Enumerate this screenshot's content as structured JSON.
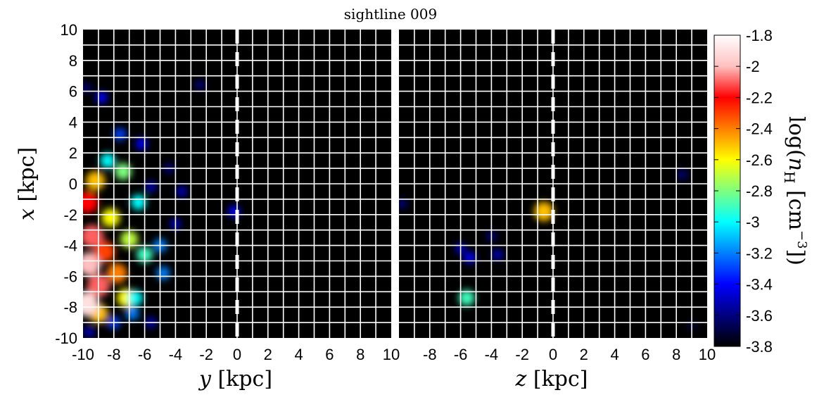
{
  "chart_data": {
    "type": "heatmap",
    "title": "sightline 009",
    "colorbar": {
      "label_prefix": "log(",
      "label_var": "n",
      "label_sub": "H",
      "label_unit": " [cm",
      "label_exp": "−3",
      "label_close": "])",
      "range": [
        -3.8,
        -1.8
      ],
      "ticks": [
        "-1.8",
        "-2",
        "-2.2",
        "-2.4",
        "-2.6",
        "-2.8",
        "-3",
        "-3.2",
        "-3.4",
        "-3.6",
        "-3.8"
      ],
      "colormap": [
        "#000000",
        "#00007f",
        "#0000ff",
        "#007fff",
        "#00ffff",
        "#7fff7f",
        "#ffff00",
        "#ff7f00",
        "#ff0000",
        "#ffc0c0",
        "#ffffff"
      ]
    },
    "panels": [
      {
        "xlabel_var": "y",
        "xlabel_unit": " [kpc]",
        "ylabel_var": "x",
        "ylabel_unit": " [kpc]",
        "xlim": [
          -10,
          10
        ],
        "ylim": [
          -10,
          10
        ],
        "xticks": [
          "-10",
          "-8",
          "-6",
          "-4",
          "-2",
          "0",
          "2",
          "4",
          "6",
          "8",
          "10"
        ],
        "yticks": [
          "10",
          "8",
          "6",
          "4",
          "2",
          "0",
          "-2",
          "-4",
          "-6",
          "-8",
          "-10"
        ],
        "sightline_at": 0,
        "grid": true,
        "clouds": [
          {
            "x": -9.6,
            "y": -5.2,
            "value": -2.0
          },
          {
            "x": -9.4,
            "y": -3.4,
            "value": -2.1
          },
          {
            "x": -9.0,
            "y": -6.6,
            "value": -2.1
          },
          {
            "x": -9.7,
            "y": -1.2,
            "value": -2.2
          },
          {
            "x": -8.6,
            "y": -4.4,
            "value": -2.3
          },
          {
            "x": -9.2,
            "y": 0.2,
            "value": -2.5
          },
          {
            "x": -8.2,
            "y": -2.2,
            "value": -2.6
          },
          {
            "x": -7.8,
            "y": -5.8,
            "value": -2.4
          },
          {
            "x": -7.2,
            "y": -7.4,
            "value": -2.6
          },
          {
            "x": -9.0,
            "y": -8.4,
            "value": -2.5
          },
          {
            "x": -8.4,
            "y": 1.5,
            "value": -3.0
          },
          {
            "x": -7.0,
            "y": -3.6,
            "value": -2.7
          },
          {
            "x": -6.4,
            "y": -1.2,
            "value": -3.0
          },
          {
            "x": -6.0,
            "y": -4.6,
            "value": -2.9
          },
          {
            "x": -5.0,
            "y": -4.0,
            "value": -3.2
          },
          {
            "x": -7.6,
            "y": 3.2,
            "value": -3.3
          },
          {
            "x": -6.2,
            "y": 2.6,
            "value": -3.4
          },
          {
            "x": -6.6,
            "y": -7.4,
            "value": -3.0
          },
          {
            "x": -6.8,
            "y": -8.4,
            "value": -3.2
          },
          {
            "x": -8.0,
            "y": -9.0,
            "value": -3.3
          },
          {
            "x": -9.6,
            "y": -9.6,
            "value": -3.5
          },
          {
            "x": -8.8,
            "y": 5.6,
            "value": -3.4
          },
          {
            "x": -9.8,
            "y": 6.2,
            "value": -3.6
          },
          {
            "x": -5.6,
            "y": -0.2,
            "value": -3.5
          },
          {
            "x": -3.6,
            "y": -0.5,
            "value": -3.5
          },
          {
            "x": -4.8,
            "y": -5.8,
            "value": -3.2
          },
          {
            "x": -4.4,
            "y": 1.0,
            "value": -3.6
          },
          {
            "x": -4.0,
            "y": -2.6,
            "value": -3.5
          },
          {
            "x": -0.2,
            "y": -1.8,
            "value": -3.4
          },
          {
            "x": -2.4,
            "y": 6.4,
            "value": -3.6
          },
          {
            "x": -5.6,
            "y": -9.0,
            "value": -3.5
          },
          {
            "x": -7.4,
            "y": 0.8,
            "value": -2.8
          },
          {
            "x": -9.8,
            "y": -7.8,
            "value": -1.9
          }
        ]
      },
      {
        "xlabel_var": "z",
        "xlabel_unit": " [kpc]",
        "xlim": [
          -10,
          10
        ],
        "ylim": [
          -10,
          10
        ],
        "xticks": [
          "-8",
          "-6",
          "-4",
          "-2",
          "0",
          "2",
          "4",
          "6",
          "8",
          "10"
        ],
        "sightline_at": 0,
        "grid": true,
        "clouds": [
          {
            "x": -0.6,
            "y": -1.8,
            "value": -2.5
          },
          {
            "x": -5.6,
            "y": -7.4,
            "value": -2.9
          },
          {
            "x": -5.4,
            "y": -4.8,
            "value": -3.4
          },
          {
            "x": -6.0,
            "y": -4.2,
            "value": -3.5
          },
          {
            "x": -3.6,
            "y": -4.6,
            "value": -3.5
          },
          {
            "x": -4.0,
            "y": -3.4,
            "value": -3.6
          },
          {
            "x": 8.4,
            "y": 0.6,
            "value": -3.6
          },
          {
            "x": -9.8,
            "y": -1.3,
            "value": -3.6
          },
          {
            "x": 9.0,
            "y": -9.2,
            "value": -3.7
          }
        ]
      }
    ]
  }
}
